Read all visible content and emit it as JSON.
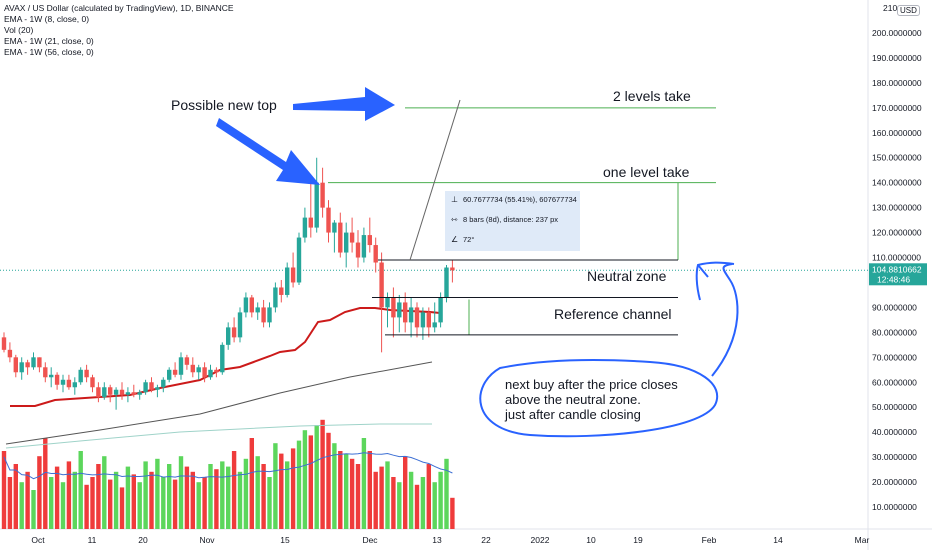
{
  "legend": {
    "title": "AVAX / US Dollar (calculated by TradingView), 1D, BINANCE",
    "studies": [
      "EMA - 1W (8, close, 0)",
      "Vol (20)",
      "EMA - 1W (21, close, 0)",
      "EMA - 1W (56, close, 0)"
    ]
  },
  "currency_button": "USD",
  "price_axis": {
    "top_label": "210",
    "ticks": [
      "200.0000000",
      "190.0000000",
      "180.0000000",
      "170.0000000",
      "160.0000000",
      "150.0000000",
      "140.0000000",
      "130.0000000",
      "120.0000000",
      "110.0000000",
      "90.0000000",
      "80.0000000",
      "70.0000000",
      "60.0000000",
      "50.0000000",
      "40.0000000",
      "30.0000000",
      "20.0000000",
      "10.0000000"
    ]
  },
  "current_price": {
    "value": "104.8810662",
    "countdown": "12:48:46",
    "color": "#26a69a"
  },
  "time_axis": [
    "Oct",
    "11",
    "20",
    "Nov",
    "15",
    "Dec",
    "13",
    "22",
    "2022",
    "10",
    "19",
    "Feb",
    "14",
    "Mar"
  ],
  "annotations": {
    "possible_new_top": "Possible new top",
    "two_levels_take": "2 levels take",
    "one_level_take": "one level take",
    "neutral_zone": "Neutral zone",
    "reference_channel": "Reference channel",
    "note_line1": "next buy after the price closes",
    "note_line2": "above the neutral zone.",
    "note_line3": "just after candle closing"
  },
  "measure_box": {
    "line1": "60.7677734 (55.41%), 607677734",
    "line2": "8 bars (8d), distance: 237 px",
    "line3": "72°"
  },
  "colors": {
    "up": "#26a69a",
    "down": "#ef5350",
    "vol_up": "#5cd65c",
    "vol_down": "#ef3b3b",
    "ema8": "#cc1a1a",
    "ema21": "#9fd3c9",
    "ema56": "#555555",
    "vol_ma": "#3d6fd4",
    "annotation_blue": "#2962ff",
    "level_green": "#4caf50"
  },
  "chart_data": {
    "type": "candlestick",
    "symbol": "AVAX / US Dollar (calculated by TradingView), 1D, BINANCE",
    "y_axis": {
      "min": 0,
      "max": 210,
      "unit": "USD"
    },
    "x_axis_labels": [
      "Oct",
      "11",
      "20",
      "Nov",
      "15",
      "Dec",
      "13",
      "22",
      "2022",
      "10",
      "19",
      "Feb",
      "14",
      "Mar"
    ],
    "candles_ohlc": [
      [
        78,
        80,
        72,
        73
      ],
      [
        73,
        76,
        68,
        70
      ],
      [
        70,
        71,
        62,
        64
      ],
      [
        64,
        70,
        61,
        68
      ],
      [
        68,
        69,
        63,
        66
      ],
      [
        66,
        72,
        65,
        70
      ],
      [
        70,
        70,
        64,
        66
      ],
      [
        66,
        68,
        60,
        62
      ],
      [
        62,
        66,
        58,
        63
      ],
      [
        63,
        64,
        57,
        59
      ],
      [
        59,
        63,
        56,
        61
      ],
      [
        61,
        63,
        57,
        58
      ],
      [
        58,
        62,
        55,
        60
      ],
      [
        60,
        66,
        59,
        65
      ],
      [
        65,
        67,
        60,
        62
      ],
      [
        62,
        63,
        56,
        58
      ],
      [
        58,
        60,
        52,
        54
      ],
      [
        54,
        60,
        53,
        58
      ],
      [
        58,
        59,
        52,
        55
      ],
      [
        55,
        58,
        49,
        57
      ],
      [
        57,
        60,
        53,
        55
      ],
      [
        55,
        58,
        52,
        56
      ],
      [
        56,
        59,
        54,
        55
      ],
      [
        55,
        57,
        53,
        56
      ],
      [
        56,
        61,
        55,
        60
      ],
      [
        60,
        62,
        56,
        57
      ],
      [
        57,
        59,
        54,
        58
      ],
      [
        58,
        62,
        56,
        61
      ],
      [
        61,
        66,
        60,
        65
      ],
      [
        65,
        68,
        62,
        63
      ],
      [
        63,
        72,
        61,
        70
      ],
      [
        70,
        71,
        65,
        67
      ],
      [
        67,
        70,
        62,
        64
      ],
      [
        64,
        67,
        61,
        66
      ],
      [
        66,
        68,
        60,
        62
      ],
      [
        62,
        67,
        61,
        65
      ],
      [
        65,
        66,
        62,
        64
      ],
      [
        64,
        76,
        63,
        75
      ],
      [
        75,
        84,
        73,
        82
      ],
      [
        82,
        86,
        76,
        78
      ],
      [
        78,
        90,
        76,
        88
      ],
      [
        88,
        96,
        86,
        94
      ],
      [
        94,
        95,
        86,
        88
      ],
      [
        88,
        92,
        85,
        90
      ],
      [
        90,
        93,
        82,
        84
      ],
      [
        84,
        92,
        82,
        90
      ],
      [
        90,
        100,
        88,
        98
      ],
      [
        98,
        101,
        92,
        95
      ],
      [
        95,
        108,
        94,
        106
      ],
      [
        106,
        112,
        98,
        100
      ],
      [
        100,
        120,
        99,
        118
      ],
      [
        118,
        130,
        116,
        126
      ],
      [
        126,
        140,
        118,
        122
      ],
      [
        122,
        150,
        120,
        140
      ],
      [
        140,
        146,
        126,
        130
      ],
      [
        130,
        133,
        116,
        120
      ],
      [
        120,
        125,
        112,
        124
      ],
      [
        124,
        128,
        110,
        112
      ],
      [
        112,
        124,
        106,
        120
      ],
      [
        120,
        126,
        112,
        116
      ],
      [
        116,
        121,
        106,
        110
      ],
      [
        110,
        122,
        108,
        119
      ],
      [
        119,
        126,
        112,
        115
      ],
      [
        115,
        118,
        104,
        108
      ],
      [
        108,
        112,
        72,
        90
      ],
      [
        90,
        96,
        82,
        94
      ],
      [
        94,
        98,
        78,
        86
      ],
      [
        86,
        95,
        80,
        92
      ],
      [
        92,
        96,
        80,
        84
      ],
      [
        84,
        94,
        78,
        90
      ],
      [
        90,
        92,
        78,
        82
      ],
      [
        82,
        90,
        77,
        88
      ],
      [
        88,
        90,
        78,
        82
      ],
      [
        82,
        92,
        80,
        84
      ],
      [
        84,
        96,
        82,
        94
      ],
      [
        94,
        107,
        92,
        106
      ],
      [
        106,
        109,
        100,
        104.88
      ]
    ],
    "levels": {
      "two_levels_take": 170,
      "one_level_take": 140,
      "neutral_zone_top": 109,
      "neutral_zone_bottom": 94,
      "reference_channel_bottom": 79
    },
    "volume": [
      30,
      20,
      25,
      18,
      22,
      15,
      28,
      35,
      20,
      24,
      18,
      26,
      22,
      30,
      17,
      20,
      25,
      28,
      19,
      22,
      16,
      24,
      21,
      18,
      26,
      22,
      27,
      20,
      25,
      19,
      28,
      24,
      22,
      18,
      20,
      25,
      23,
      26,
      24,
      30,
      22,
      27,
      35,
      28,
      25,
      20,
      33,
      29,
      26,
      31,
      34,
      38,
      36,
      40,
      42,
      37,
      33,
      30,
      29,
      27,
      25,
      35,
      30,
      22,
      24,
      26,
      20,
      18,
      28,
      22,
      17,
      20,
      25,
      18,
      22,
      27,
      12
    ]
  }
}
